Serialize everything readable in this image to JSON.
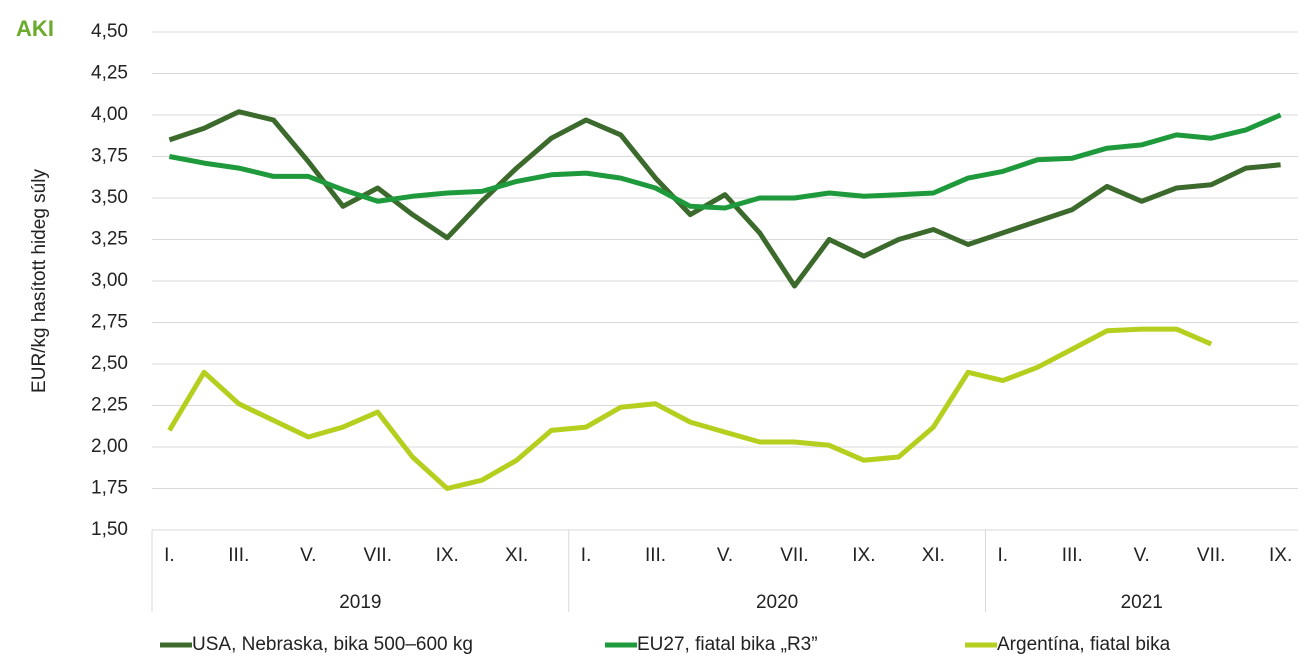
{
  "chart_data": {
    "type": "line",
    "logo": "AKI",
    "y_label": "EUR/kg hasított hideg súly",
    "categories": [
      "I.",
      null,
      "III.",
      null,
      "V.",
      null,
      "VII.",
      null,
      "IX.",
      null,
      "XI.",
      null,
      "I.",
      null,
      "III.",
      null,
      "V.",
      null,
      "VII.",
      null,
      "IX.",
      null,
      "XI.",
      null,
      "I.",
      null,
      "III.",
      null,
      "V.",
      null,
      "VII.",
      null,
      "IX."
    ],
    "years": [
      "2019",
      "2020",
      "2021"
    ],
    "series": [
      {
        "name": "USA, Nebraska, bika 500–600 kg",
        "color": "#3b6a2c",
        "values": [
          3.85,
          3.92,
          4.02,
          3.97,
          3.72,
          3.45,
          3.56,
          3.4,
          3.26,
          3.48,
          3.68,
          3.86,
          3.97,
          3.88,
          3.62,
          3.4,
          3.52,
          3.29,
          2.97,
          3.25,
          3.15,
          3.25,
          3.31,
          3.22,
          3.29,
          3.36,
          3.43,
          3.57,
          3.48,
          3.56,
          3.58,
          3.68,
          3.7
        ]
      },
      {
        "name": "EU27, fiatal bika „R3”",
        "color": "#1e9a3c",
        "values": [
          3.75,
          3.71,
          3.68,
          3.63,
          3.63,
          3.55,
          3.48,
          3.51,
          3.53,
          3.54,
          3.6,
          3.64,
          3.65,
          3.62,
          3.56,
          3.45,
          3.44,
          3.5,
          3.5,
          3.53,
          3.51,
          3.52,
          3.53,
          3.62,
          3.66,
          3.73,
          3.74,
          3.8,
          3.82,
          3.88,
          3.86,
          3.91,
          4.0
        ]
      },
      {
        "name": "Argentína, fiatal bika",
        "color": "#b6cf1f",
        "values": [
          2.1,
          2.45,
          2.26,
          2.16,
          2.06,
          2.12,
          2.21,
          1.94,
          1.75,
          1.8,
          1.92,
          2.1,
          2.12,
          2.24,
          2.26,
          2.15,
          2.09,
          2.03,
          2.03,
          2.01,
          1.92,
          1.94,
          2.12,
          2.45,
          2.4,
          2.48,
          2.59,
          2.7,
          2.71,
          2.71,
          2.62,
          null,
          null
        ]
      }
    ],
    "ylim": [
      1.5,
      4.5
    ],
    "yticks": [
      {
        "value": 1.5,
        "label": "1,50"
      },
      {
        "value": 1.75,
        "label": "1,75"
      },
      {
        "value": 2,
        "label": "2,00"
      },
      {
        "value": 2.25,
        "label": "2,25"
      },
      {
        "value": 2.5,
        "label": "2,50"
      },
      {
        "value": 2.75,
        "label": "2,75"
      },
      {
        "value": 3,
        "label": "3,00"
      },
      {
        "value": 3.25,
        "label": "3,25"
      },
      {
        "value": 3.5,
        "label": "3,50"
      },
      {
        "value": 3.75,
        "label": "3,75"
      },
      {
        "value": 4,
        "label": "4,00"
      },
      {
        "value": 4.25,
        "label": "4,25"
      },
      {
        "value": 4.5,
        "label": "4,50"
      }
    ],
    "grid": true
  }
}
